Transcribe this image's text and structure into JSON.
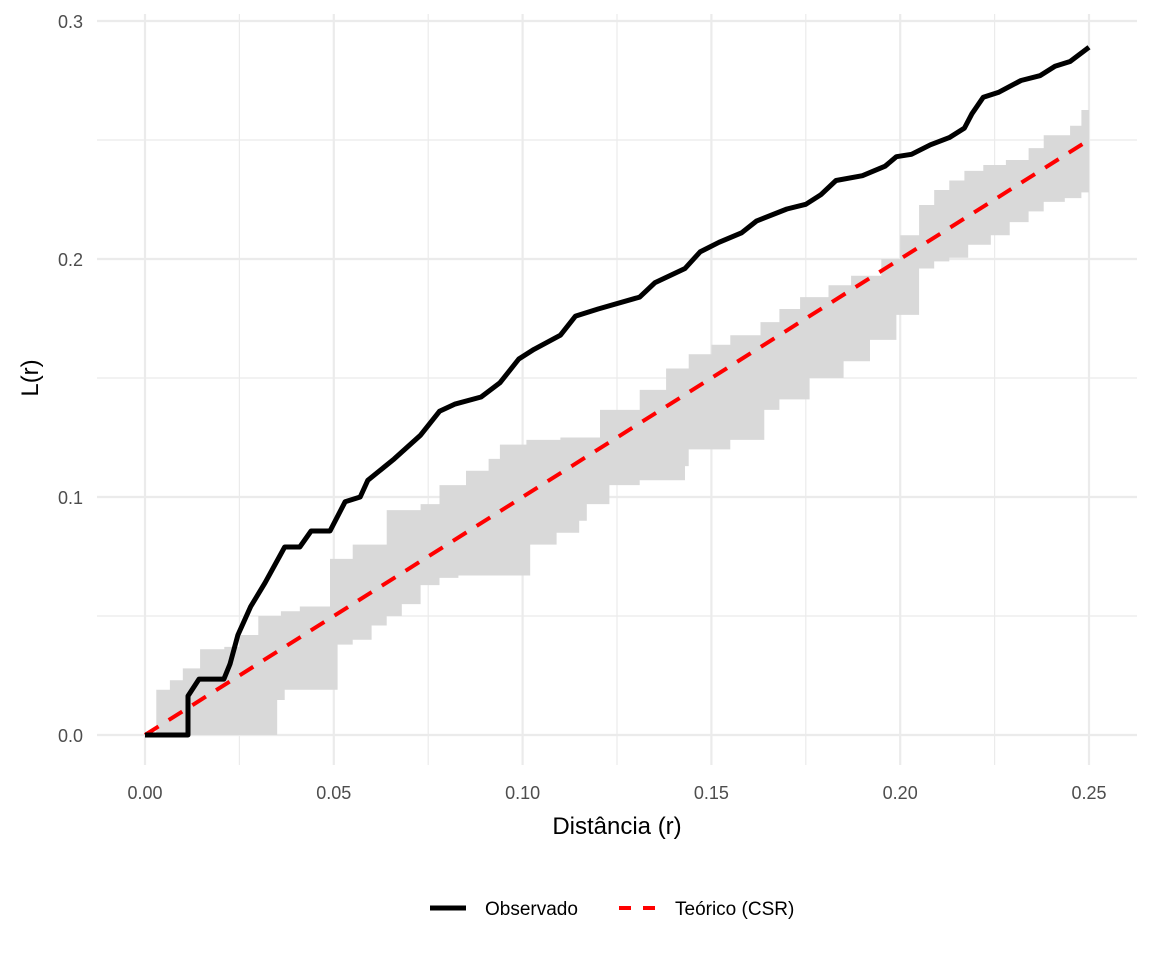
{
  "chart_data": {
    "type": "line",
    "title": "",
    "xlabel": "Distância (r)",
    "ylabel": "L(r)",
    "xlim": [
      -0.0125,
      0.2625
    ],
    "ylim": [
      -0.0125,
      0.3
    ],
    "x_ticks": [
      0.0,
      0.05,
      0.1,
      0.15,
      0.2,
      0.25
    ],
    "x_tick_labels": [
      "0.00",
      "0.05",
      "0.10",
      "0.15",
      "0.20",
      "0.25"
    ],
    "x_minor_ticks": [
      0.025,
      0.075,
      0.125,
      0.175,
      0.225
    ],
    "y_ticks": [
      0.0,
      0.1,
      0.2,
      0.3
    ],
    "y_tick_labels": [
      "0.0",
      "0.1",
      "0.2",
      "0.3"
    ],
    "y_minor_ticks": [
      0.05,
      0.15,
      0.25
    ],
    "grid": true,
    "legend_position": "bottom",
    "colors": {
      "observed": "#000000",
      "theoretical": "#ff0000",
      "envelope": "#d9d9d9",
      "grid": "#ebebeb"
    },
    "series": [
      {
        "name": "Observado",
        "style": "solid",
        "x": [
          0,
          0.0114,
          0.0114,
          0.0143,
          0.0209,
          0.0225,
          0.0246,
          0.028,
          0.0318,
          0.037,
          0.041,
          0.044,
          0.049,
          0.053,
          0.057,
          0.059,
          0.066,
          0.073,
          0.078,
          0.082,
          0.089,
          0.094,
          0.099,
          0.103,
          0.11,
          0.114,
          0.12,
          0.131,
          0.135,
          0.143,
          0.147,
          0.152,
          0.158,
          0.162,
          0.17,
          0.175,
          0.179,
          0.183,
          0.19,
          0.196,
          0.199,
          0.203,
          0.208,
          0.213,
          0.217,
          0.219,
          0.222,
          0.226,
          0.232,
          0.237,
          0.241,
          0.245,
          0.25
        ],
        "y": [
          0,
          0,
          0.0164,
          0.0235,
          0.0235,
          0.0298,
          0.042,
          0.054,
          0.064,
          0.079,
          0.079,
          0.0857,
          0.0857,
          0.098,
          0.1,
          0.107,
          0.116,
          0.126,
          0.136,
          0.139,
          0.142,
          0.148,
          0.158,
          0.162,
          0.168,
          0.176,
          0.179,
          0.184,
          0.19,
          0.196,
          0.203,
          0.207,
          0.211,
          0.216,
          0.221,
          0.223,
          0.227,
          0.233,
          0.235,
          0.239,
          0.243,
          0.244,
          0.248,
          0.251,
          0.255,
          0.261,
          0.268,
          0.27,
          0.275,
          0.277,
          0.281,
          0.283,
          0.289
        ]
      },
      {
        "name": "Teórico (CSR)",
        "style": "dashed",
        "x": [
          0,
          0.25
        ],
        "y": [
          0,
          0.25
        ]
      }
    ],
    "envelope": {
      "name": "Envelope",
      "upper": {
        "x": [
          0,
          0.003,
          0.0066,
          0.01,
          0.0146,
          0.021,
          0.025,
          0.03,
          0.036,
          0.041,
          0.049,
          0.055,
          0.064,
          0.073,
          0.078,
          0.085,
          0.091,
          0.094,
          0.101,
          0.11,
          0.1205,
          0.131,
          0.138,
          0.144,
          0.15,
          0.155,
          0.163,
          0.168,
          0.1735,
          0.181,
          0.187,
          0.195,
          0.2,
          0.205,
          0.209,
          0.213,
          0.217,
          0.222,
          0.228,
          0.234,
          0.238,
          0.245,
          0.248,
          0.25
        ],
        "y": [
          0,
          0.019,
          0.023,
          0.028,
          0.036,
          0.037,
          0.042,
          0.05,
          0.052,
          0.054,
          0.074,
          0.08,
          0.0945,
          0.097,
          0.105,
          0.111,
          0.116,
          0.122,
          0.124,
          0.125,
          0.1366,
          0.145,
          0.154,
          0.16,
          0.164,
          0.168,
          0.1735,
          0.179,
          0.184,
          0.189,
          0.193,
          0.2,
          0.21,
          0.2227,
          0.229,
          0.233,
          0.237,
          0.2395,
          0.2416,
          0.2466,
          0.252,
          0.256,
          0.2626,
          0.273
        ]
      },
      "lower": {
        "x": [
          0,
          0.034,
          0.035,
          0.037,
          0.05,
          0.051,
          0.055,
          0.06,
          0.064,
          0.068,
          0.073,
          0.078,
          0.083,
          0.101,
          0.102,
          0.109,
          0.115,
          0.117,
          0.123,
          0.131,
          0.134,
          0.143,
          0.144,
          0.155,
          0.164,
          0.168,
          0.176,
          0.185,
          0.192,
          0.199,
          0.205,
          0.209,
          0.213,
          0.218,
          0.224,
          0.229,
          0.234,
          0.238,
          0.2436,
          0.248,
          0.25
        ],
        "y": [
          0,
          0,
          0.0147,
          0.019,
          0.019,
          0.038,
          0.04,
          0.046,
          0.05,
          0.055,
          0.063,
          0.066,
          0.067,
          0.067,
          0.08,
          0.085,
          0.09,
          0.097,
          0.105,
          0.107,
          0.107,
          0.113,
          0.12,
          0.124,
          0.1366,
          0.141,
          0.15,
          0.157,
          0.166,
          0.1765,
          0.196,
          0.199,
          0.2005,
          0.206,
          0.21,
          0.2155,
          0.22,
          0.224,
          0.2256,
          0.228,
          0.23
        ]
      }
    },
    "legend": [
      {
        "label": "Observado",
        "style": "solid",
        "color": "#000000"
      },
      {
        "label": "Teórico (CSR)",
        "style": "dashed",
        "color": "#ff0000"
      }
    ]
  }
}
